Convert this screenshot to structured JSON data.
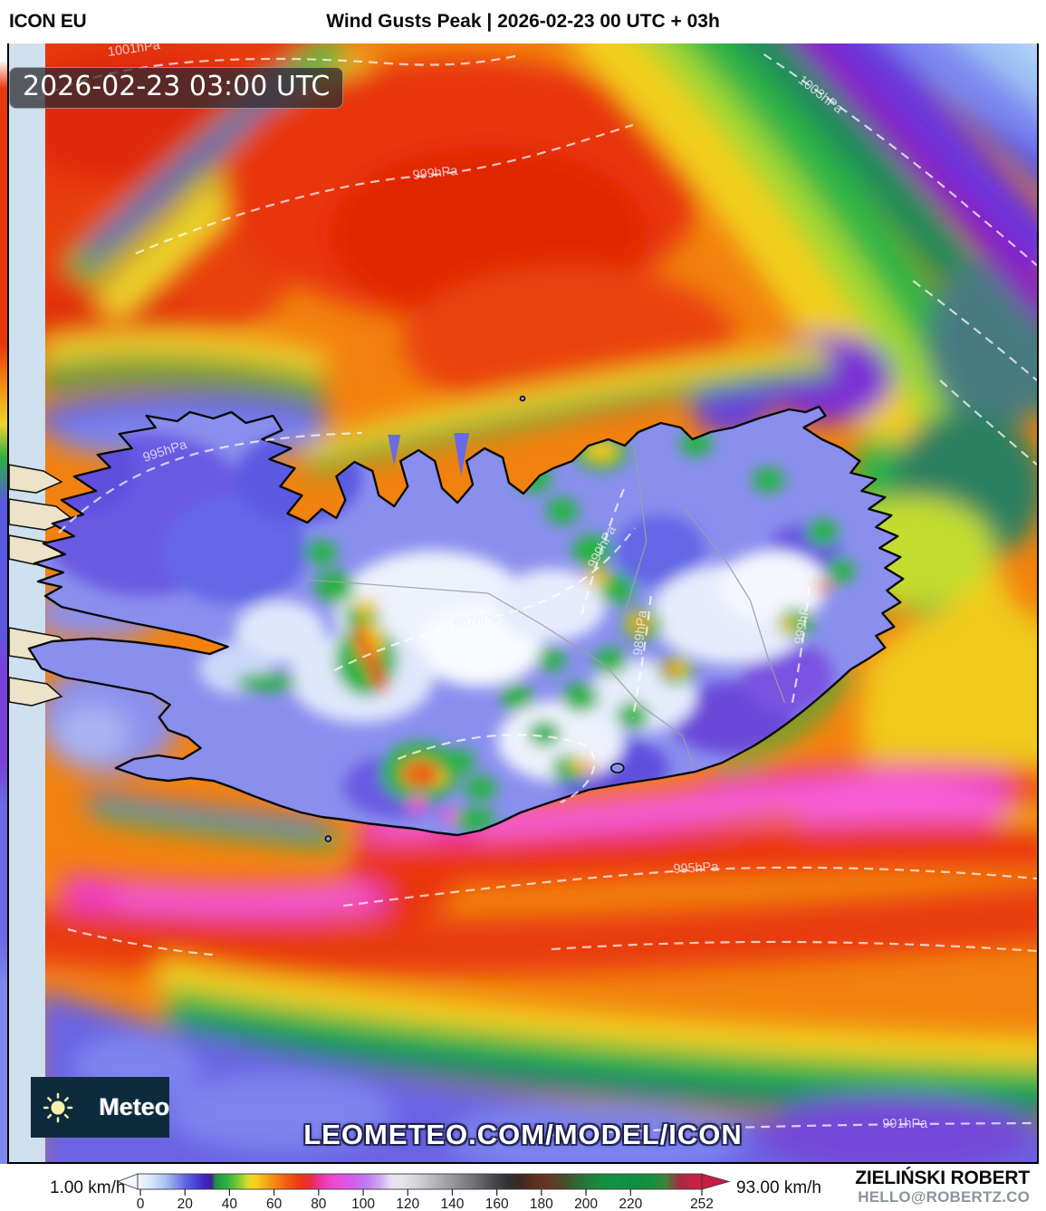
{
  "header": {
    "model_name": "ICON EU",
    "title": "Wind Gusts Peak | 2026-02-23 00 UTC + 03h"
  },
  "map": {
    "timestamp_overlay": "2026-02-23 03:00 UTC",
    "watermark": "LEOMETEO.COM/MODEL/ICON",
    "logo_label": "Meteo",
    "isobar_labels": [
      "1001hPa",
      "999hPa",
      "1003hPa",
      "995hPa",
      "997hPa",
      "999hPa",
      "989hPa",
      "999hPa",
      "995hPa",
      "991hPa"
    ]
  },
  "legend": {
    "min_label": "1.00 km/h",
    "max_label": "93.00 km/h",
    "unit": "km/h",
    "ticks": [
      0,
      20,
      40,
      60,
      80,
      100,
      120,
      140,
      160,
      180,
      200,
      220,
      252
    ]
  },
  "credits": {
    "author": "ZIELIŃSKI ROBERT",
    "contact": "HELLO@ROBERTZ.CO"
  },
  "chart_data": {
    "type": "heatmap",
    "title": "Wind Gusts Peak | 2026-02-23 00 UTC + 03h",
    "model": "ICON EU",
    "run": "2026-02-23 00 UTC",
    "lead_time": "+03h",
    "valid_time": "2026-02-23 03:00 UTC",
    "region": "Iceland",
    "unit": "km/h",
    "colorbar": {
      "min_value_label": "1.00 km/h",
      "max_value_label": "93.00 km/h",
      "tick_values": [
        0,
        20,
        40,
        60,
        80,
        100,
        120,
        140,
        160,
        180,
        200,
        220,
        252
      ]
    },
    "isobar_labels_hpa": [
      1001,
      999,
      1003,
      995,
      997,
      999,
      989,
      999,
      995,
      991
    ]
  }
}
